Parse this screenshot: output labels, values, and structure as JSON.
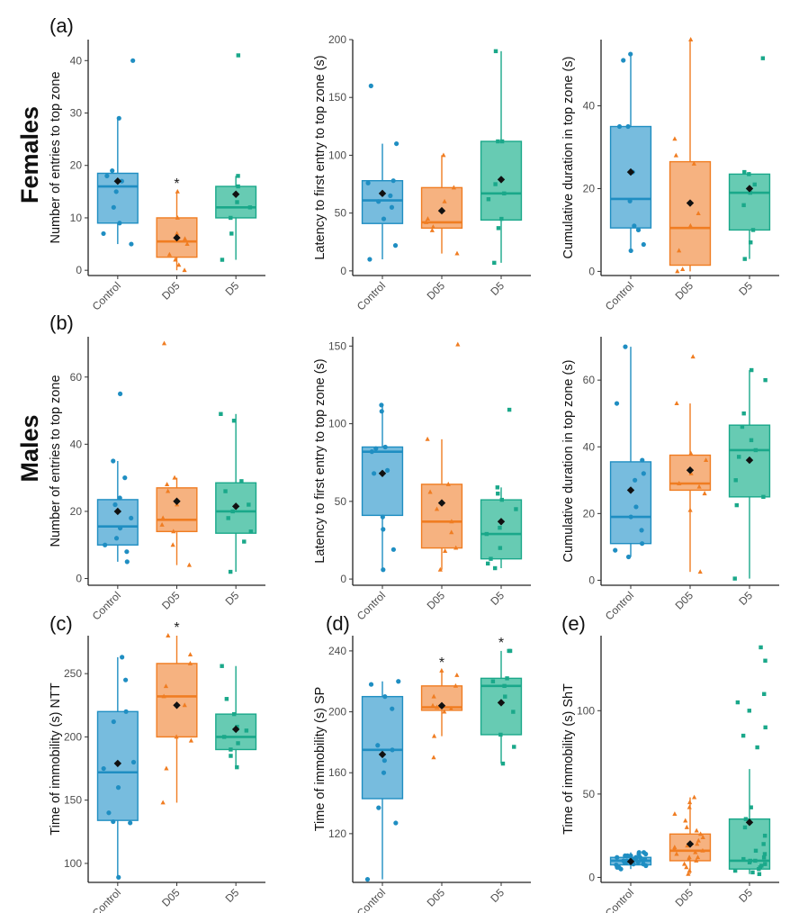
{
  "figure": {
    "row_labels": {
      "females": "Females",
      "males": "Males"
    },
    "panel_labels": {
      "a": "(a)",
      "b": "(b)",
      "c": "(c)",
      "d": "(d)",
      "e": "(e)"
    },
    "groups": [
      "Control",
      "D05",
      "D5"
    ],
    "group_colors": {
      "Control": "#1f8ec2",
      "D05": "#f07d22",
      "D5": "#1aa88a"
    },
    "box_fill_colors": {
      "Control": "#5fb0d8",
      "D05": "#f5a56a",
      "D5": "#4cc2a6"
    },
    "point_shapes": {
      "Control": "circle",
      "D05": "triangle",
      "D5": "square"
    },
    "mean_marker": "black-diamond",
    "significance_marker": "*"
  },
  "chart_data": [
    {
      "id": "a1",
      "type": "box",
      "panel_label": "(a)",
      "row": "Females",
      "ylabel": "Number of entries to top zone",
      "yticks": [
        0,
        10,
        20,
        30,
        40
      ],
      "ylim": [
        -1,
        44
      ],
      "categories": [
        "Control",
        "D05",
        "D5"
      ],
      "series": [
        {
          "name": "Control",
          "q1": 9,
          "median": 16,
          "q3": 18.5,
          "whisker_low": 5,
          "whisker_high": 29,
          "mean": 17,
          "sig": "",
          "points": [
            5,
            7,
            9,
            12,
            15,
            17,
            18,
            19,
            29,
            40
          ]
        },
        {
          "name": "D05",
          "q1": 2.5,
          "median": 5.5,
          "q3": 10,
          "whisker_low": 0,
          "whisker_high": 15,
          "mean": 6.2,
          "sig": "*",
          "points": [
            0,
            1,
            2,
            3,
            5,
            6,
            7,
            10,
            15
          ]
        },
        {
          "name": "D5",
          "q1": 10,
          "median": 12,
          "q3": 16,
          "whisker_low": 2,
          "whisker_high": 18,
          "mean": 14.5,
          "sig": "",
          "points": [
            2,
            7,
            10,
            12,
            13,
            16,
            18,
            41
          ]
        }
      ]
    },
    {
      "id": "a2",
      "type": "box",
      "panel_label": "",
      "row": "Females",
      "ylabel": "Latency to first entry to top zone (s)",
      "yticks": [
        0,
        50,
        100,
        150,
        200
      ],
      "ylim": [
        -4,
        200
      ],
      "categories": [
        "Control",
        "D05",
        "D5"
      ],
      "series": [
        {
          "name": "Control",
          "q1": 41,
          "median": 61,
          "q3": 78,
          "whisker_low": 10,
          "whisker_high": 110,
          "mean": 67,
          "sig": "",
          "points": [
            10,
            22,
            45,
            55,
            60,
            65,
            76,
            78,
            110,
            160
          ]
        },
        {
          "name": "D05",
          "q1": 37,
          "median": 42,
          "q3": 72,
          "whisker_low": 15,
          "whisker_high": 100,
          "mean": 52,
          "sig": "",
          "points": [
            15,
            35,
            38,
            42,
            45,
            60,
            72,
            100
          ]
        },
        {
          "name": "D5",
          "q1": 44,
          "median": 67,
          "q3": 112,
          "whisker_low": 7,
          "whisker_high": 190,
          "mean": 79,
          "sig": "",
          "points": [
            7,
            37,
            45,
            62,
            67,
            75,
            112,
            112,
            190
          ]
        }
      ]
    },
    {
      "id": "a3",
      "type": "box",
      "panel_label": "",
      "row": "Females",
      "ylabel": "Cumulative duration in top zone (s)",
      "yticks": [
        0,
        20,
        40
      ],
      "ylim": [
        -1,
        56
      ],
      "categories": [
        "Control",
        "D05",
        "D5"
      ],
      "series": [
        {
          "name": "Control",
          "q1": 10.5,
          "median": 17.5,
          "q3": 35,
          "whisker_low": 5,
          "whisker_high": 52,
          "mean": 24,
          "sig": "",
          "points": [
            5,
            6.5,
            10,
            11,
            17,
            24,
            35,
            35,
            51,
            52.5
          ]
        },
        {
          "name": "D05",
          "q1": 1.5,
          "median": 10.5,
          "q3": 26.5,
          "whisker_low": 0,
          "whisker_high": 56,
          "mean": 16.5,
          "sig": "",
          "points": [
            0,
            0.5,
            5,
            11,
            14,
            26,
            28,
            32,
            56
          ]
        },
        {
          "name": "D5",
          "q1": 10,
          "median": 19,
          "q3": 23.5,
          "whisker_low": 3,
          "whisker_high": 24,
          "mean": 20,
          "sig": "",
          "points": [
            3,
            7,
            10,
            16,
            19,
            21,
            23.5,
            24,
            51.5
          ]
        }
      ]
    },
    {
      "id": "b1",
      "type": "box",
      "panel_label": "(b)",
      "row": "Males",
      "ylabel": "Number of entries to top zone",
      "yticks": [
        0,
        20,
        40,
        60
      ],
      "ylim": [
        -2,
        72
      ],
      "categories": [
        "Control",
        "D05",
        "D5"
      ],
      "series": [
        {
          "name": "Control",
          "q1": 10,
          "median": 15.5,
          "q3": 23.5,
          "whisker_low": 5,
          "whisker_high": 35,
          "mean": 20,
          "sig": "",
          "points": [
            5,
            8,
            10,
            12,
            15,
            18,
            22,
            24,
            30,
            35,
            55
          ]
        },
        {
          "name": "D05",
          "q1": 14,
          "median": 17.5,
          "q3": 27,
          "whisker_low": 4,
          "whisker_high": 30,
          "mean": 23,
          "sig": "",
          "points": [
            4,
            10,
            14,
            16,
            18,
            22,
            26,
            28,
            30,
            70
          ]
        },
        {
          "name": "D5",
          "q1": 13.5,
          "median": 20,
          "q3": 28.5,
          "whisker_low": 2,
          "whisker_high": 49,
          "mean": 21.5,
          "sig": "",
          "points": [
            2,
            11,
            14,
            18,
            20,
            22,
            26,
            29,
            47,
            49
          ]
        }
      ]
    },
    {
      "id": "b2",
      "type": "box",
      "panel_label": "",
      "row": "Males",
      "ylabel": "Latency to first entry to top zone (s)",
      "yticks": [
        0,
        50,
        100,
        150
      ],
      "ylim": [
        -4,
        156
      ],
      "categories": [
        "Control",
        "D05",
        "D5"
      ],
      "series": [
        {
          "name": "Control",
          "q1": 41,
          "median": 82,
          "q3": 85,
          "whisker_low": 6,
          "whisker_high": 112,
          "mean": 68,
          "sig": "",
          "points": [
            6,
            19,
            32,
            40,
            68,
            70,
            82,
            84,
            85,
            108,
            112
          ]
        },
        {
          "name": "D05",
          "q1": 20,
          "median": 37,
          "q3": 61,
          "whisker_low": 6,
          "whisker_high": 90,
          "mean": 49,
          "sig": "",
          "points": [
            6,
            18,
            20,
            30,
            37,
            45,
            56,
            61,
            90,
            151
          ]
        },
        {
          "name": "D5",
          "q1": 13,
          "median": 29,
          "q3": 51,
          "whisker_low": 7,
          "whisker_high": 59,
          "mean": 37,
          "sig": "",
          "points": [
            7,
            10,
            13,
            20,
            29,
            33,
            45,
            51,
            55,
            59,
            109
          ]
        }
      ]
    },
    {
      "id": "b3",
      "type": "box",
      "panel_label": "",
      "row": "Males",
      "ylabel": "Cumulative duration in top zone (s)",
      "yticks": [
        0,
        20,
        40,
        60
      ],
      "ylim": [
        -1.5,
        73
      ],
      "categories": [
        "Control",
        "D05",
        "D5"
      ],
      "series": [
        {
          "name": "Control",
          "q1": 11,
          "median": 19,
          "q3": 35.5,
          "whisker_low": 7,
          "whisker_high": 70,
          "mean": 27,
          "sig": "",
          "points": [
            7,
            9,
            11,
            15,
            19,
            22,
            30,
            32,
            36,
            53,
            70
          ]
        },
        {
          "name": "D05",
          "q1": 27,
          "median": 29,
          "q3": 37.5,
          "whisker_low": 2.5,
          "whisker_high": 53,
          "mean": 33,
          "sig": "",
          "points": [
            2.5,
            21,
            26,
            28,
            29,
            32,
            36,
            38,
            53,
            67
          ]
        },
        {
          "name": "D5",
          "q1": 25,
          "median": 39,
          "q3": 46.5,
          "whisker_low": 0.5,
          "whisker_high": 63,
          "mean": 36,
          "sig": "",
          "points": [
            0.5,
            22.5,
            25,
            30,
            37,
            39,
            42,
            46,
            50,
            60,
            63
          ]
        }
      ]
    },
    {
      "id": "c",
      "type": "box",
      "panel_label": "(c)",
      "row": "",
      "ylabel": "Time of immobility (s) NTT",
      "yticks": [
        100,
        150,
        200,
        250
      ],
      "ylim": [
        85,
        280
      ],
      "categories": [
        "Control",
        "D05",
        "D5"
      ],
      "series": [
        {
          "name": "Control",
          "q1": 134,
          "median": 172,
          "q3": 220,
          "whisker_low": 89,
          "whisker_high": 263,
          "mean": 179,
          "sig": "",
          "points": [
            89,
            132,
            133,
            140,
            160,
            175,
            180,
            212,
            220,
            245,
            263
          ]
        },
        {
          "name": "D05",
          "q1": 200,
          "median": 232,
          "q3": 258,
          "whisker_low": 148,
          "whisker_high": 280,
          "mean": 225,
          "sig": "*",
          "points": [
            148,
            175,
            197,
            200,
            225,
            232,
            240,
            258,
            265,
            280
          ]
        },
        {
          "name": "D5",
          "q1": 190,
          "median": 200,
          "q3": 218,
          "whisker_low": 176,
          "whisker_high": 256,
          "mean": 206,
          "sig": "",
          "points": [
            176,
            185,
            190,
            195,
            200,
            205,
            208,
            218,
            230,
            256
          ]
        }
      ]
    },
    {
      "id": "d",
      "type": "box",
      "panel_label": "(d)",
      "row": "",
      "ylabel": "Time of immobility (s) SP",
      "yticks": [
        120,
        160,
        200,
        240
      ],
      "ylim": [
        88,
        250
      ],
      "categories": [
        "Control",
        "D05",
        "D5"
      ],
      "series": [
        {
          "name": "Control",
          "q1": 143,
          "median": 175,
          "q3": 210,
          "whisker_low": 90,
          "whisker_high": 220,
          "mean": 172,
          "sig": "",
          "points": [
            90,
            127,
            137,
            160,
            168,
            175,
            178,
            202,
            210,
            218,
            220
          ]
        },
        {
          "name": "D05",
          "q1": 201,
          "median": 203,
          "q3": 217,
          "whisker_low": 184,
          "whisker_high": 227,
          "mean": 204,
          "sig": "*",
          "points": [
            170,
            184,
            200,
            202,
            203,
            204,
            210,
            217,
            224,
            227
          ]
        },
        {
          "name": "D5",
          "q1": 185,
          "median": 217,
          "q3": 222,
          "whisker_low": 166,
          "whisker_high": 240,
          "mean": 206,
          "sig": "*",
          "points": [
            166,
            177,
            185,
            200,
            210,
            217,
            220,
            222,
            240,
            240
          ]
        }
      ]
    },
    {
      "id": "e",
      "type": "box",
      "panel_label": "(e)",
      "row": "",
      "ylabel": "Time of immobility (s) ShT",
      "yticks": [
        0,
        50,
        100
      ],
      "ylim": [
        -3,
        145
      ],
      "categories": [
        "Control",
        "D05",
        "D5"
      ],
      "series": [
        {
          "name": "Control",
          "q1": 7.5,
          "median": 10,
          "q3": 12,
          "whisker_low": 5,
          "whisker_high": 15,
          "mean": 9.5,
          "sig": "",
          "points": [
            5,
            6,
            7,
            7.5,
            8,
            8,
            9,
            9,
            10,
            10,
            10,
            11,
            11,
            12,
            12,
            12,
            13,
            13,
            14,
            14,
            15,
            15,
            6,
            9,
            11,
            13
          ]
        },
        {
          "name": "D05",
          "q1": 10,
          "median": 16,
          "q3": 26,
          "whisker_low": 2,
          "whisker_high": 48,
          "mean": 20,
          "sig": "",
          "points": [
            2,
            4,
            6,
            8,
            10,
            11,
            12,
            14,
            15,
            16,
            17,
            18,
            20,
            22,
            24,
            26,
            28,
            30,
            34,
            38,
            42,
            45,
            48,
            12,
            19
          ]
        },
        {
          "name": "D5",
          "q1": 5,
          "median": 10,
          "q3": 35,
          "whisker_low": 2,
          "whisker_high": 65,
          "mean": 33,
          "sig": "",
          "points": [
            2,
            3,
            4,
            5,
            6,
            7,
            8,
            9,
            10,
            10,
            11,
            12,
            14,
            16,
            20,
            25,
            30,
            35,
            42,
            78,
            85,
            90,
            100,
            105,
            110,
            130,
            138
          ]
        }
      ]
    }
  ]
}
